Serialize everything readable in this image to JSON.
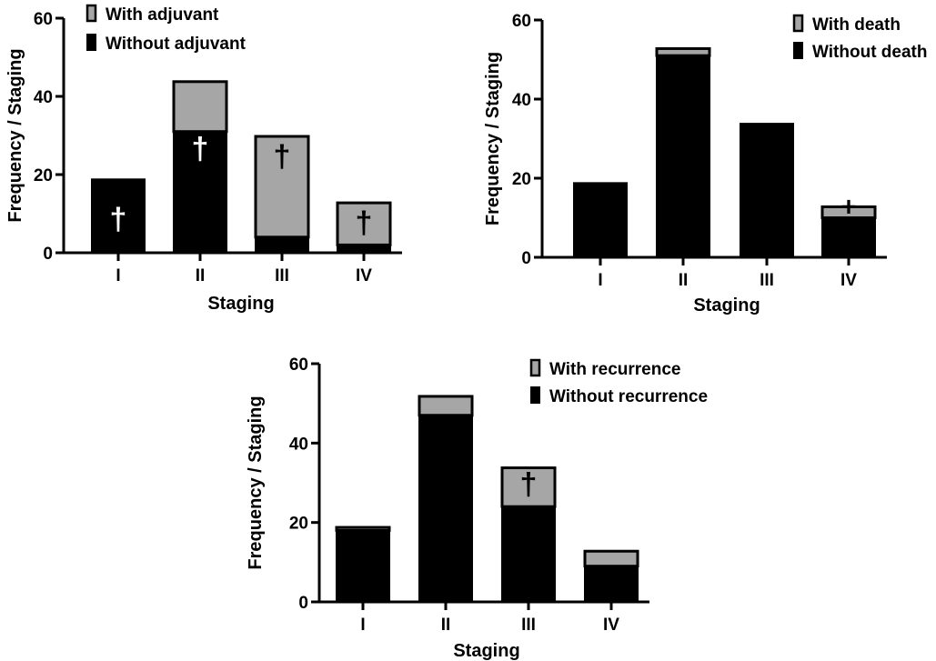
{
  "colors": {
    "with": "#a6a6a6",
    "without": "#000000",
    "axis": "#000000",
    "marker": "#ffffff"
  },
  "marker_symbol": "†",
  "chart_data": [
    {
      "type": "bar",
      "stacked": true,
      "categories": [
        "I",
        "II",
        "III",
        "IV"
      ],
      "series": [
        {
          "name": "Without adjuvant",
          "values": [
            19,
            31,
            4,
            2
          ]
        },
        {
          "name": "With adjuvant",
          "values": [
            0,
            13,
            26,
            11
          ]
        }
      ],
      "xlabel": "Staging",
      "ylabel": "Frequency / Staging",
      "ylim": [
        0,
        60
      ],
      "yticks": [
        "0",
        "20",
        "40",
        "60"
      ],
      "legend_position": "top-right",
      "annotations": [
        "I",
        "II",
        "III",
        "IV"
      ]
    },
    {
      "type": "bar",
      "stacked": true,
      "categories": [
        "I",
        "II",
        "III",
        "IV"
      ],
      "series": [
        {
          "name": "Without death",
          "values": [
            19,
            51,
            34,
            10
          ]
        },
        {
          "name": "With death",
          "values": [
            0,
            2,
            0,
            3
          ]
        }
      ],
      "xlabel": "Staging",
      "ylabel": "Frequency / Staging",
      "ylim": [
        0,
        60
      ],
      "yticks": [
        "0",
        "20",
        "40",
        "60"
      ],
      "legend_position": "top-right",
      "annotations": [
        "IV"
      ]
    },
    {
      "type": "bar",
      "stacked": true,
      "categories": [
        "I",
        "II",
        "III",
        "IV"
      ],
      "series": [
        {
          "name": "Without recurrence",
          "values": [
            18,
            47,
            24,
            9
          ]
        },
        {
          "name": "With recurrence",
          "values": [
            1,
            5,
            10,
            4
          ]
        }
      ],
      "xlabel": "Staging",
      "ylabel": "Frequency / Staging",
      "ylim": [
        0,
        60
      ],
      "yticks": [
        "0",
        "20",
        "40",
        "60"
      ],
      "legend_position": "top-right",
      "annotations": [
        "III"
      ]
    }
  ]
}
